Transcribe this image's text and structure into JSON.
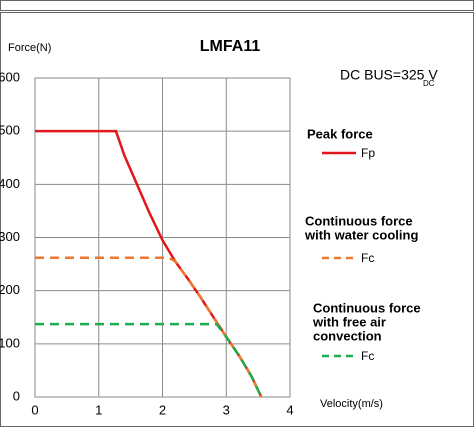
{
  "chart_data": {
    "type": "line",
    "title": "LMFA11",
    "ylabel": "Force(N)",
    "xlabel": "Velocity(m/s)",
    "annotation": {
      "text": "DC BUS=325 V",
      "subscript": "DC"
    },
    "xlim": [
      0,
      4
    ],
    "xticks": [
      0,
      1,
      2,
      3,
      4
    ],
    "ylim": [
      0,
      600
    ],
    "yticks": [
      0,
      100,
      200,
      300,
      400,
      500,
      600
    ],
    "grid": true,
    "legend_headings": [
      [
        "Peak force"
      ],
      [
        "Continuous force",
        "with water cooling"
      ],
      [
        "Continuous force",
        "with free air",
        "convection"
      ]
    ],
    "series": [
      {
        "name": "Fp",
        "color": "#e3161c",
        "style": "solid",
        "x": [
          0,
          1.27,
          1.4,
          1.6,
          1.8,
          2.0,
          2.2,
          2.4,
          2.6,
          2.8,
          3.0,
          3.2,
          3.4,
          3.55
        ],
        "values": [
          500,
          500,
          455,
          400,
          345,
          295,
          255,
          222,
          187,
          150,
          113,
          78,
          38,
          0
        ]
      },
      {
        "name": "Fc",
        "color": "#e8792d",
        "style": "dashed",
        "x": [
          0,
          2.1,
          2.2,
          2.4,
          2.6,
          2.8,
          3.0,
          3.2,
          3.4,
          3.55
        ],
        "values": [
          262,
          262,
          255,
          222,
          187,
          150,
          113,
          78,
          38,
          0
        ]
      },
      {
        "name": "Fc",
        "color": "#1fae4e",
        "style": "dashed",
        "x": [
          0,
          2.85,
          3.0,
          3.2,
          3.4,
          3.55
        ],
        "values": [
          137,
          137,
          113,
          78,
          38,
          0
        ]
      }
    ]
  }
}
